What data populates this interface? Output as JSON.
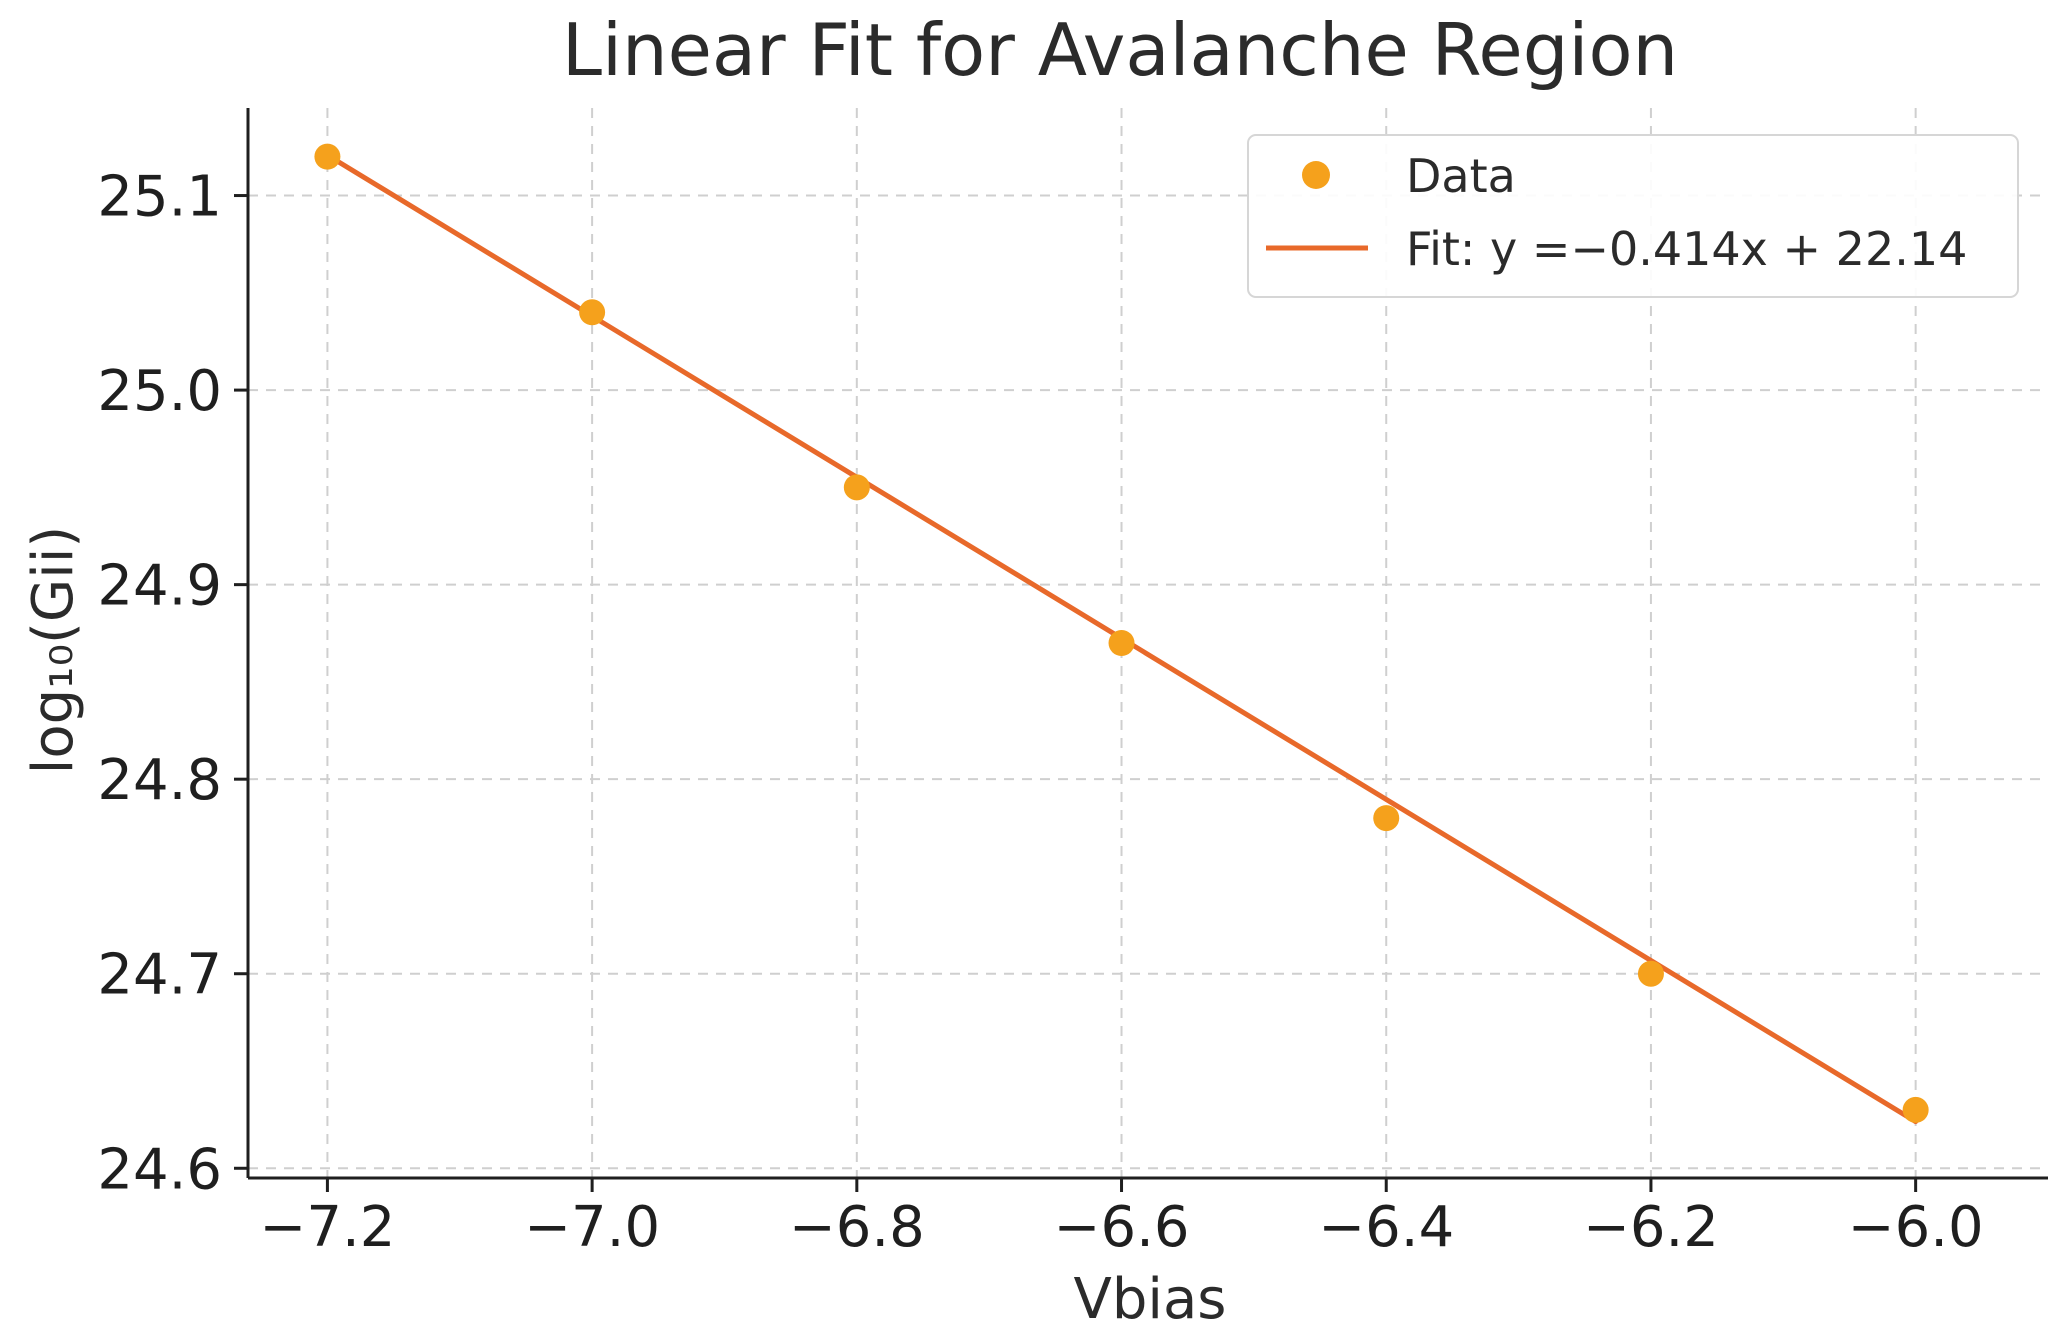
{
  "chart_data": {
    "type": "scatter",
    "title": "Linear Fit for Avalanche Region",
    "xlabel": "Vbias",
    "ylabel": "log₁₀(Gii)",
    "xlim": [
      -7.26,
      -5.9
    ],
    "ylim": [
      24.595,
      25.145
    ],
    "grid": true,
    "legend_position": "top-right",
    "xticks": [
      -7.2,
      -7.0,
      -6.8,
      -6.6,
      -6.4,
      -6.2,
      -6.0
    ],
    "xtick_labels": [
      "−7.2",
      "−7.0",
      "−6.8",
      "−6.6",
      "−6.4",
      "−6.2",
      "−6.0"
    ],
    "yticks": [
      24.6,
      24.7,
      24.8,
      24.9,
      25.0,
      25.1
    ],
    "ytick_labels": [
      "24.6",
      "24.7",
      "24.8",
      "24.9",
      "25.0",
      "25.1"
    ],
    "series": [
      {
        "name": "Data",
        "kind": "scatter",
        "color": "#f5a11c",
        "x": [
          -7.2,
          -7.0,
          -6.8,
          -6.6,
          -6.4,
          -6.2,
          -6.0
        ],
        "y": [
          25.12,
          25.04,
          24.95,
          24.87,
          24.78,
          24.7,
          24.63
        ]
      },
      {
        "name": "Fit: y =−0.414x + 22.14",
        "kind": "line",
        "color": "#e8692a",
        "slope": -0.414,
        "intercept": 22.14,
        "x": [
          -7.2,
          -6.0
        ]
      }
    ]
  }
}
